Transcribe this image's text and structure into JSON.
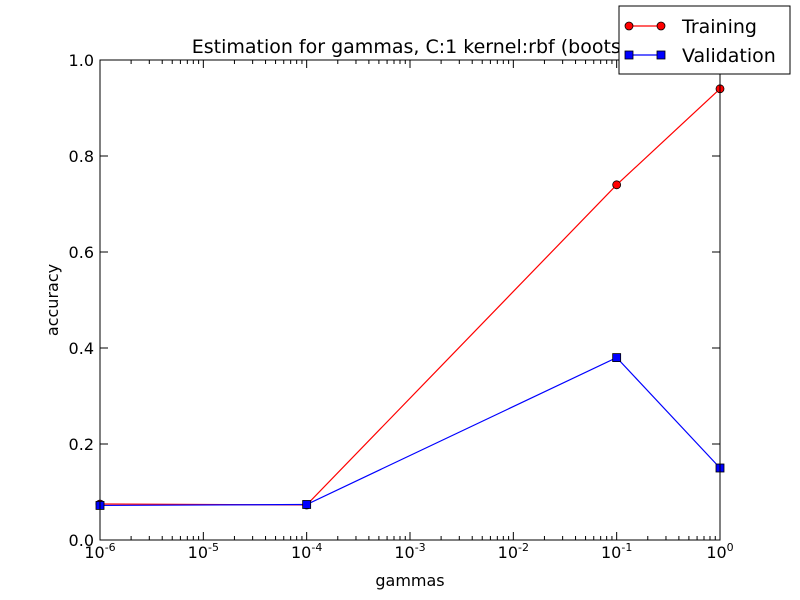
{
  "chart_data": {
    "type": "line",
    "title": "Estimation for gammas, C:1 kernel:rbf (bootst",
    "xlabel": "gammas",
    "ylabel": "accuracy",
    "x_scale": "log",
    "xlim": [
      1e-06,
      1
    ],
    "ylim": [
      0.0,
      1.0
    ],
    "grid": false,
    "legend_position": "top-right",
    "x_ticks": [
      {
        "base": "10",
        "exp": "-6",
        "value": 1e-06
      },
      {
        "base": "10",
        "exp": "-5",
        "value": 1e-05
      },
      {
        "base": "10",
        "exp": "-4",
        "value": 0.0001
      },
      {
        "base": "10",
        "exp": "-3",
        "value": 0.001
      },
      {
        "base": "10",
        "exp": "-2",
        "value": 0.01
      },
      {
        "base": "10",
        "exp": "-1",
        "value": 0.1
      },
      {
        "base": "10",
        "exp": "0",
        "value": 1
      }
    ],
    "y_ticks": [
      "0.0",
      "0.2",
      "0.4",
      "0.6",
      "0.8",
      "1.0"
    ],
    "x": [
      1e-06,
      0.0001,
      0.1,
      1
    ],
    "series": [
      {
        "name": "Training",
        "values": [
          0.075,
          0.073,
          0.74,
          0.94
        ],
        "color": "#ff0000",
        "marker": "circle"
      },
      {
        "name": "Validation",
        "values": [
          0.072,
          0.074,
          0.38,
          0.15
        ],
        "color": "#0000ff",
        "marker": "square"
      }
    ]
  }
}
